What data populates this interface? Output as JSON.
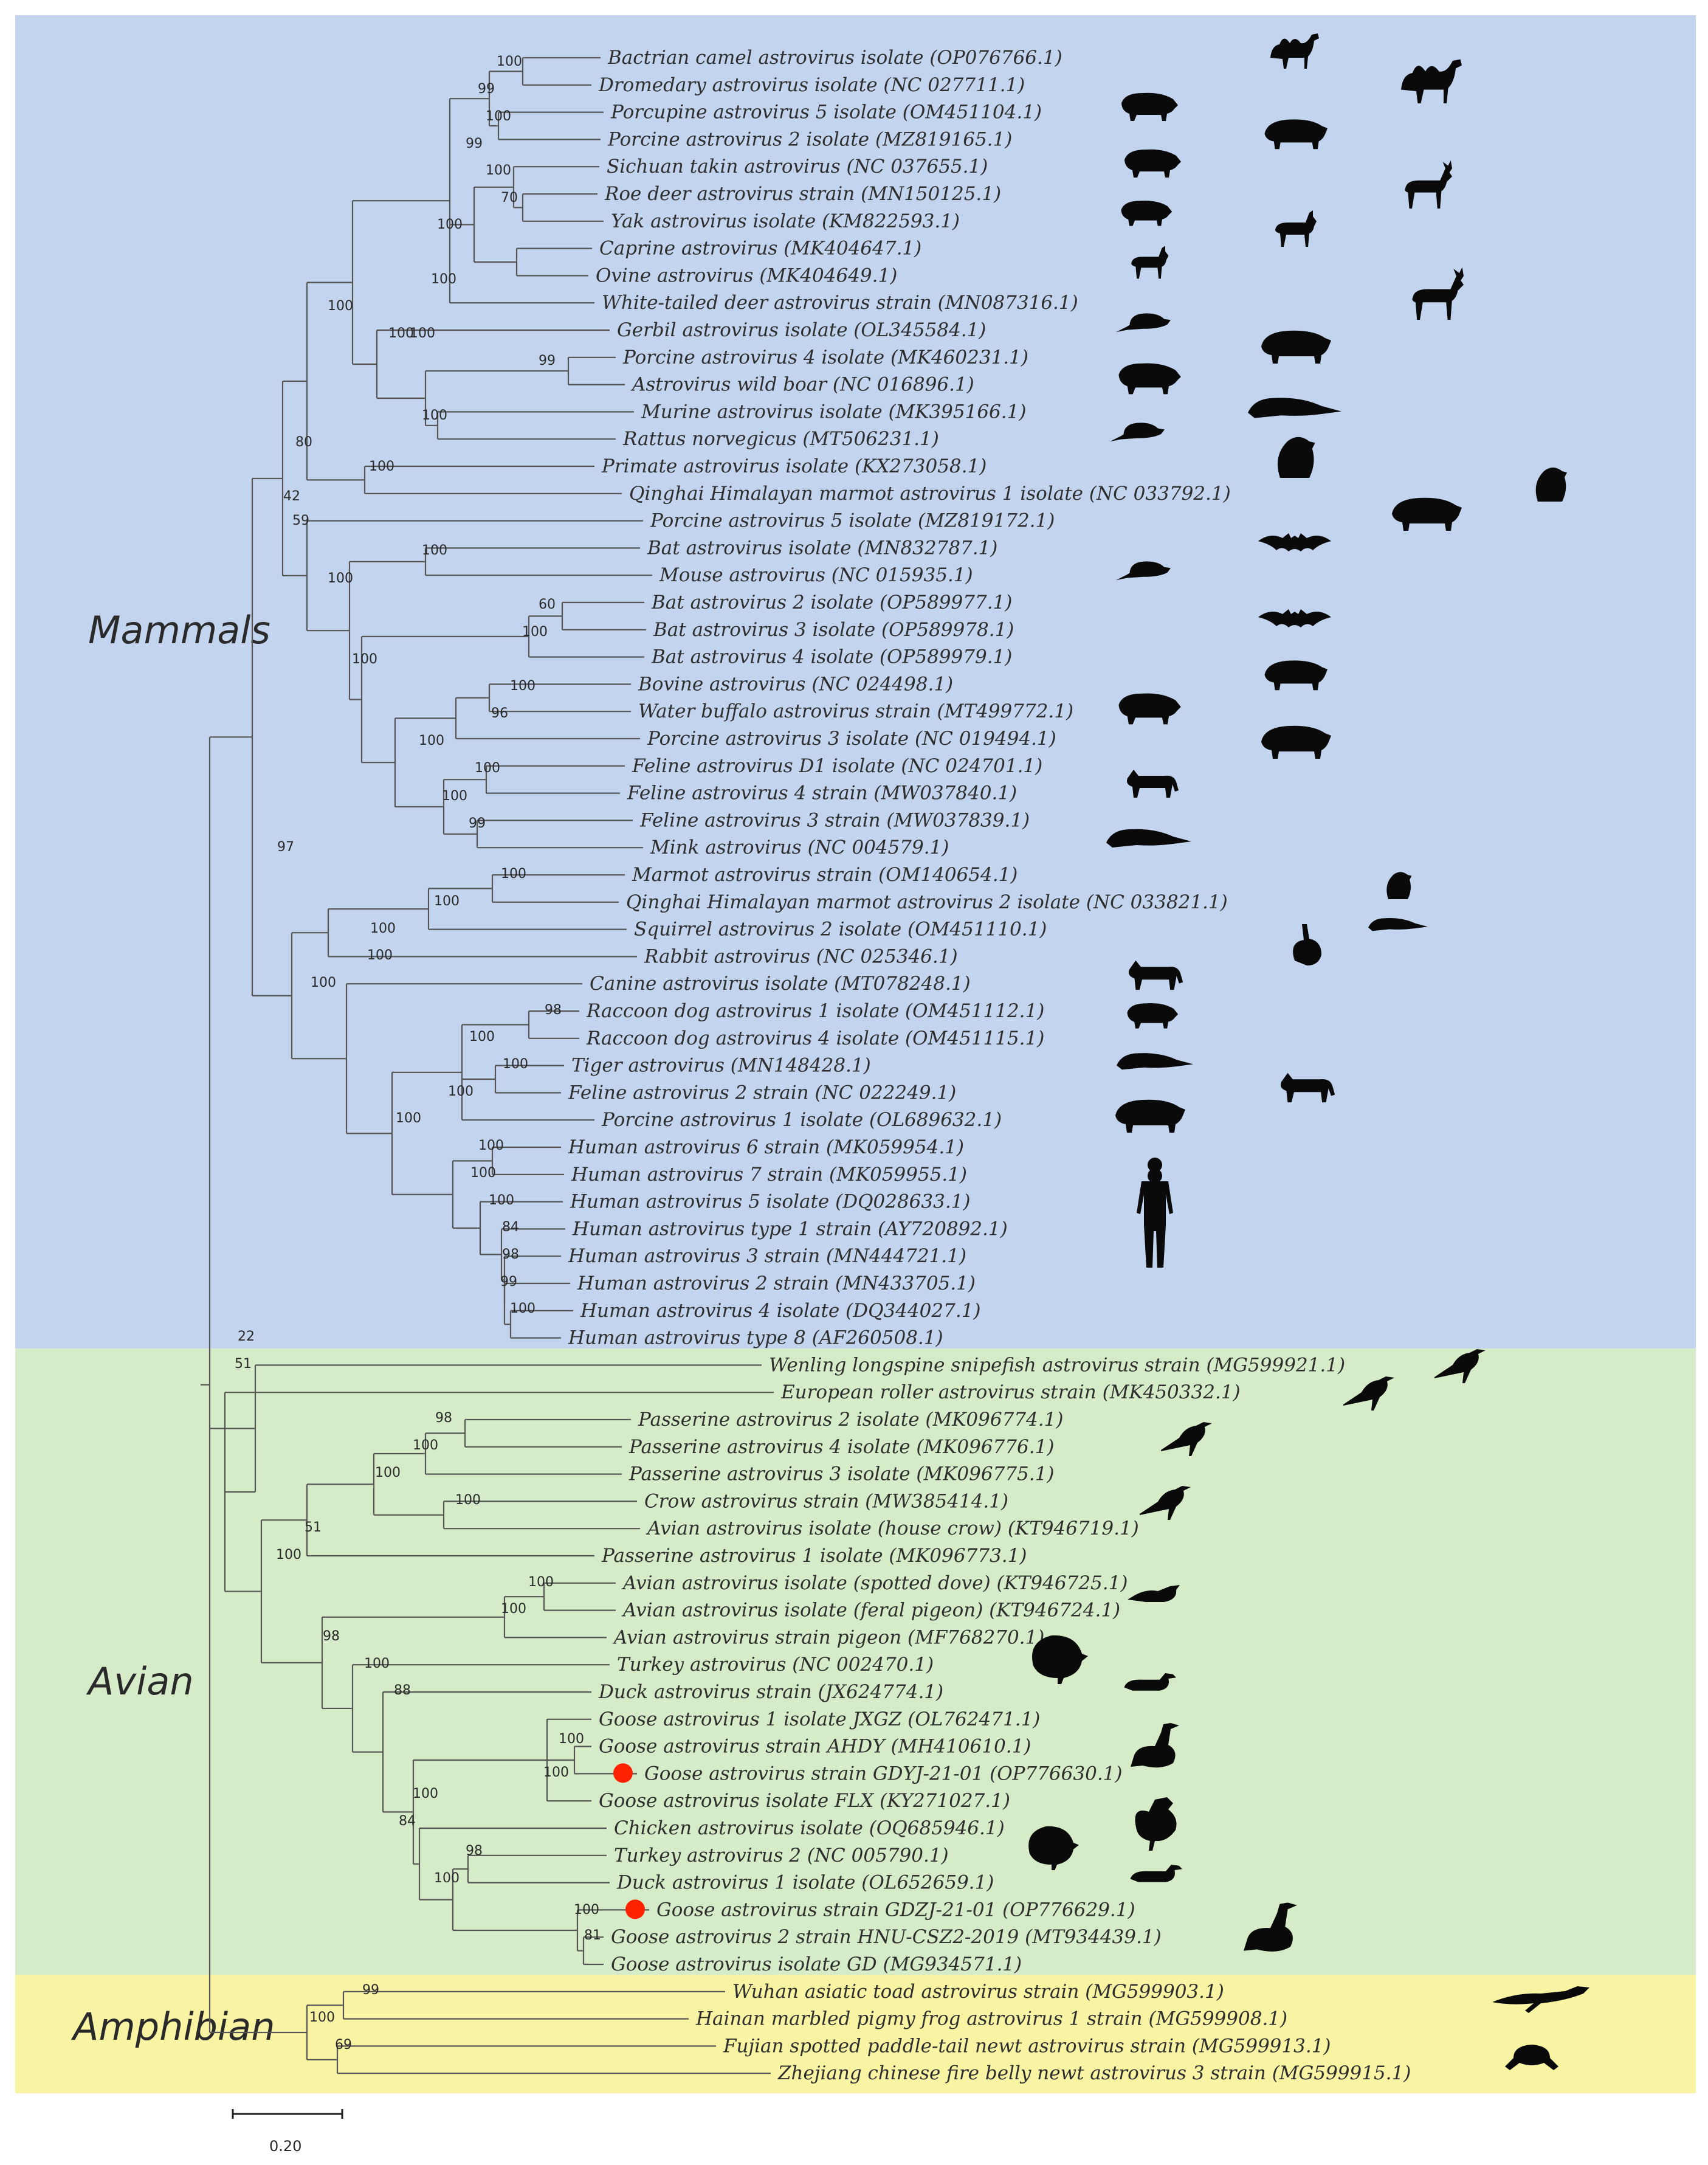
{
  "groups": [
    {
      "name": "Mammals",
      "color": "#c3d4ee"
    },
    {
      "name": "Avian",
      "color": "#d6ecc8"
    },
    {
      "name": "Amphibian",
      "color": "#f8f4a4"
    }
  ],
  "scale_label": "0.20",
  "leaves": [
    "Bactrian camel astrovirus isolate (OP076766.1)",
    "Dromedary astrovirus isolate (NC 027711.1)",
    "Porcupine astrovirus 5 isolate (OM451104.1)",
    "Porcine astrovirus 2 isolate (MZ819165.1)",
    "Sichuan takin astrovirus (NC 037655.1)",
    "Roe deer astrovirus strain (MN150125.1)",
    "Yak astrovirus isolate (KM822593.1)",
    "Caprine astrovirus (MK404647.1)",
    "Ovine astrovirus (MK404649.1)",
    "White-tailed deer astrovirus strain (MN087316.1)",
    "Gerbil astrovirus isolate (OL345584.1)",
    "Porcine astrovirus 4 isolate (MK460231.1)",
    "Astrovirus wild boar (NC 016896.1)",
    "Murine astrovirus isolate (MK395166.1)",
    "Rattus norvegicus (MT506231.1)",
    "Primate astrovirus isolate (KX273058.1)",
    "Qinghai Himalayan marmot astrovirus 1 isolate (NC 033792.1)",
    "Porcine astrovirus 5 isolate (MZ819172.1)",
    "Bat astrovirus isolate (MN832787.1)",
    "Mouse astrovirus (NC 015935.1)",
    "Bat astrovirus 2 isolate (OP589977.1)",
    "Bat astrovirus 3 isolate (OP589978.1)",
    "Bat astrovirus 4 isolate (OP589979.1)",
    "Bovine astrovirus (NC 024498.1)",
    "Water buffalo astrovirus strain (MT499772.1)",
    "Porcine astrovirus 3 isolate (NC 019494.1)",
    "Feline astrovirus D1 isolate (NC 024701.1)",
    "Feline astrovirus 4 strain (MW037840.1)",
    "Feline astrovirus 3 strain (MW037839.1)",
    "Mink astrovirus (NC 004579.1)",
    "Marmot astrovirus strain (OM140654.1)",
    "Qinghai Himalayan marmot astrovirus 2 isolate (NC 033821.1)",
    "Squirrel astrovirus 2 isolate (OM451110.1)",
    "Rabbit astrovirus (NC 025346.1)",
    "Canine astrovirus isolate (MT078248.1)",
    "Raccoon dog astrovirus 1 isolate (OM451112.1)",
    "Raccoon dog astrovirus 4 isolate (OM451115.1)",
    "Tiger astrovirus (MN148428.1)",
    "Feline astrovirus 2 strain (NC 022249.1)",
    "Porcine astrovirus 1 isolate (OL689632.1)",
    "Human astrovirus 6 strain (MK059954.1)",
    "Human astrovirus 7 strain (MK059955.1)",
    "Human astrovirus 5 isolate (DQ028633.1)",
    "Human astrovirus type 1 strain (AY720892.1)",
    "Human astrovirus 3 strain (MN444721.1)",
    "Human astrovirus 2 strain (MN433705.1)",
    "Human astrovirus 4 isolate (DQ344027.1)",
    "Human astrovirus type 8 (AF260508.1)",
    "Wenling longspine snipefish astrovirus strain (MG599921.1)",
    "European roller astrovirus strain (MK450332.1)",
    "Passerine astrovirus 2 isolate (MK096774.1)",
    "Passerine astrovirus 4 isolate (MK096776.1)",
    "Passerine astrovirus 3 isolate (MK096775.1)",
    "Crow astrovirus strain (MW385414.1)",
    "Avian astrovirus isolate (house crow) (KT946719.1)",
    "Passerine astrovirus 1 isolate (MK096773.1)",
    "Avian astrovirus isolate (spotted dove) (KT946725.1)",
    "Avian astrovirus isolate (feral pigeon) (KT946724.1)",
    "Avian astrovirus strain pigeon (MF768270.1)",
    "Turkey astrovirus (NC 002470.1)",
    "Duck astrovirus strain (JX624774.1)",
    "Goose astrovirus 1 isolate JXGZ (OL762471.1)",
    "Goose astrovirus strain AHDY (MH410610.1)",
    "Goose astrovirus strain GDYJ-21-01 (OP776630.1)",
    "Goose astrovirus isolate FLX (KY271027.1)",
    "Chicken astrovirus isolate (OQ685946.1)",
    "Turkey astrovirus 2 (NC 005790.1)",
    "Duck astrovirus 1 isolate (OL652659.1)",
    "Goose astrovirus strain GDZJ-21-01 (OP776629.1)",
    "Goose astrovirus 2 strain HNU-CSZ2-2019 (MT934439.1)",
    "Goose astrovirus isolate GD (MG934571.1)",
    "Wuhan asiatic toad astrovirus strain (MG599903.1)",
    "Hainan marbled pigmy frog astrovirus 1 strain (MG599908.1)",
    "Fujian spotted paddle-tail newt astrovirus strain (MG599913.1)",
    "Zhejiang chinese fire belly newt astrovirus 3 strain (MG599915.1)"
  ],
  "highlighted_leaves": [
    "Goose astrovirus strain GDYJ-21-01 (OP776630.1)",
    "Goose astrovirus strain GDZJ-21-01 (OP776629.1)"
  ],
  "highlight_color": "#ff2200",
  "bootstrap_values": [
    "100",
    "99",
    "100",
    "99",
    "100",
    "70",
    "100",
    "100",
    "100",
    "100",
    "100",
    "99",
    "100",
    "80",
    "100",
    "42",
    "59",
    "100",
    "100",
    "60",
    "100",
    "100",
    "100",
    "96",
    "100",
    "100",
    "100",
    "99",
    "97",
    "100",
    "100",
    "100",
    "100",
    "100",
    "98",
    "100",
    "100",
    "100",
    "100",
    "100",
    "100",
    "100",
    "84",
    "98",
    "99",
    "100",
    "22",
    "51",
    "98",
    "100",
    "100",
    "100",
    "51",
    "100",
    "100",
    "100",
    "98",
    "100",
    "88",
    "100",
    "100",
    "100",
    "84",
    "98",
    "100",
    "100",
    "81",
    "99",
    "100",
    "69"
  ],
  "silhouettes": [
    "camel-icon",
    "boar-icon",
    "deer-icon",
    "rodent-icon",
    "goat-icon",
    "marmot-icon",
    "bat-icon",
    "pig-icon",
    "buffalo-icon",
    "cat-icon",
    "mink-icon",
    "dog-icon",
    "raccoon-dog-icon",
    "tiger-icon",
    "rabbit-icon",
    "squirrel-icon",
    "human-icon",
    "crow-icon",
    "dove-icon",
    "turkey-icon",
    "duck-icon",
    "goose-icon",
    "chicken-icon",
    "toad-icon",
    "frog-icon"
  ]
}
